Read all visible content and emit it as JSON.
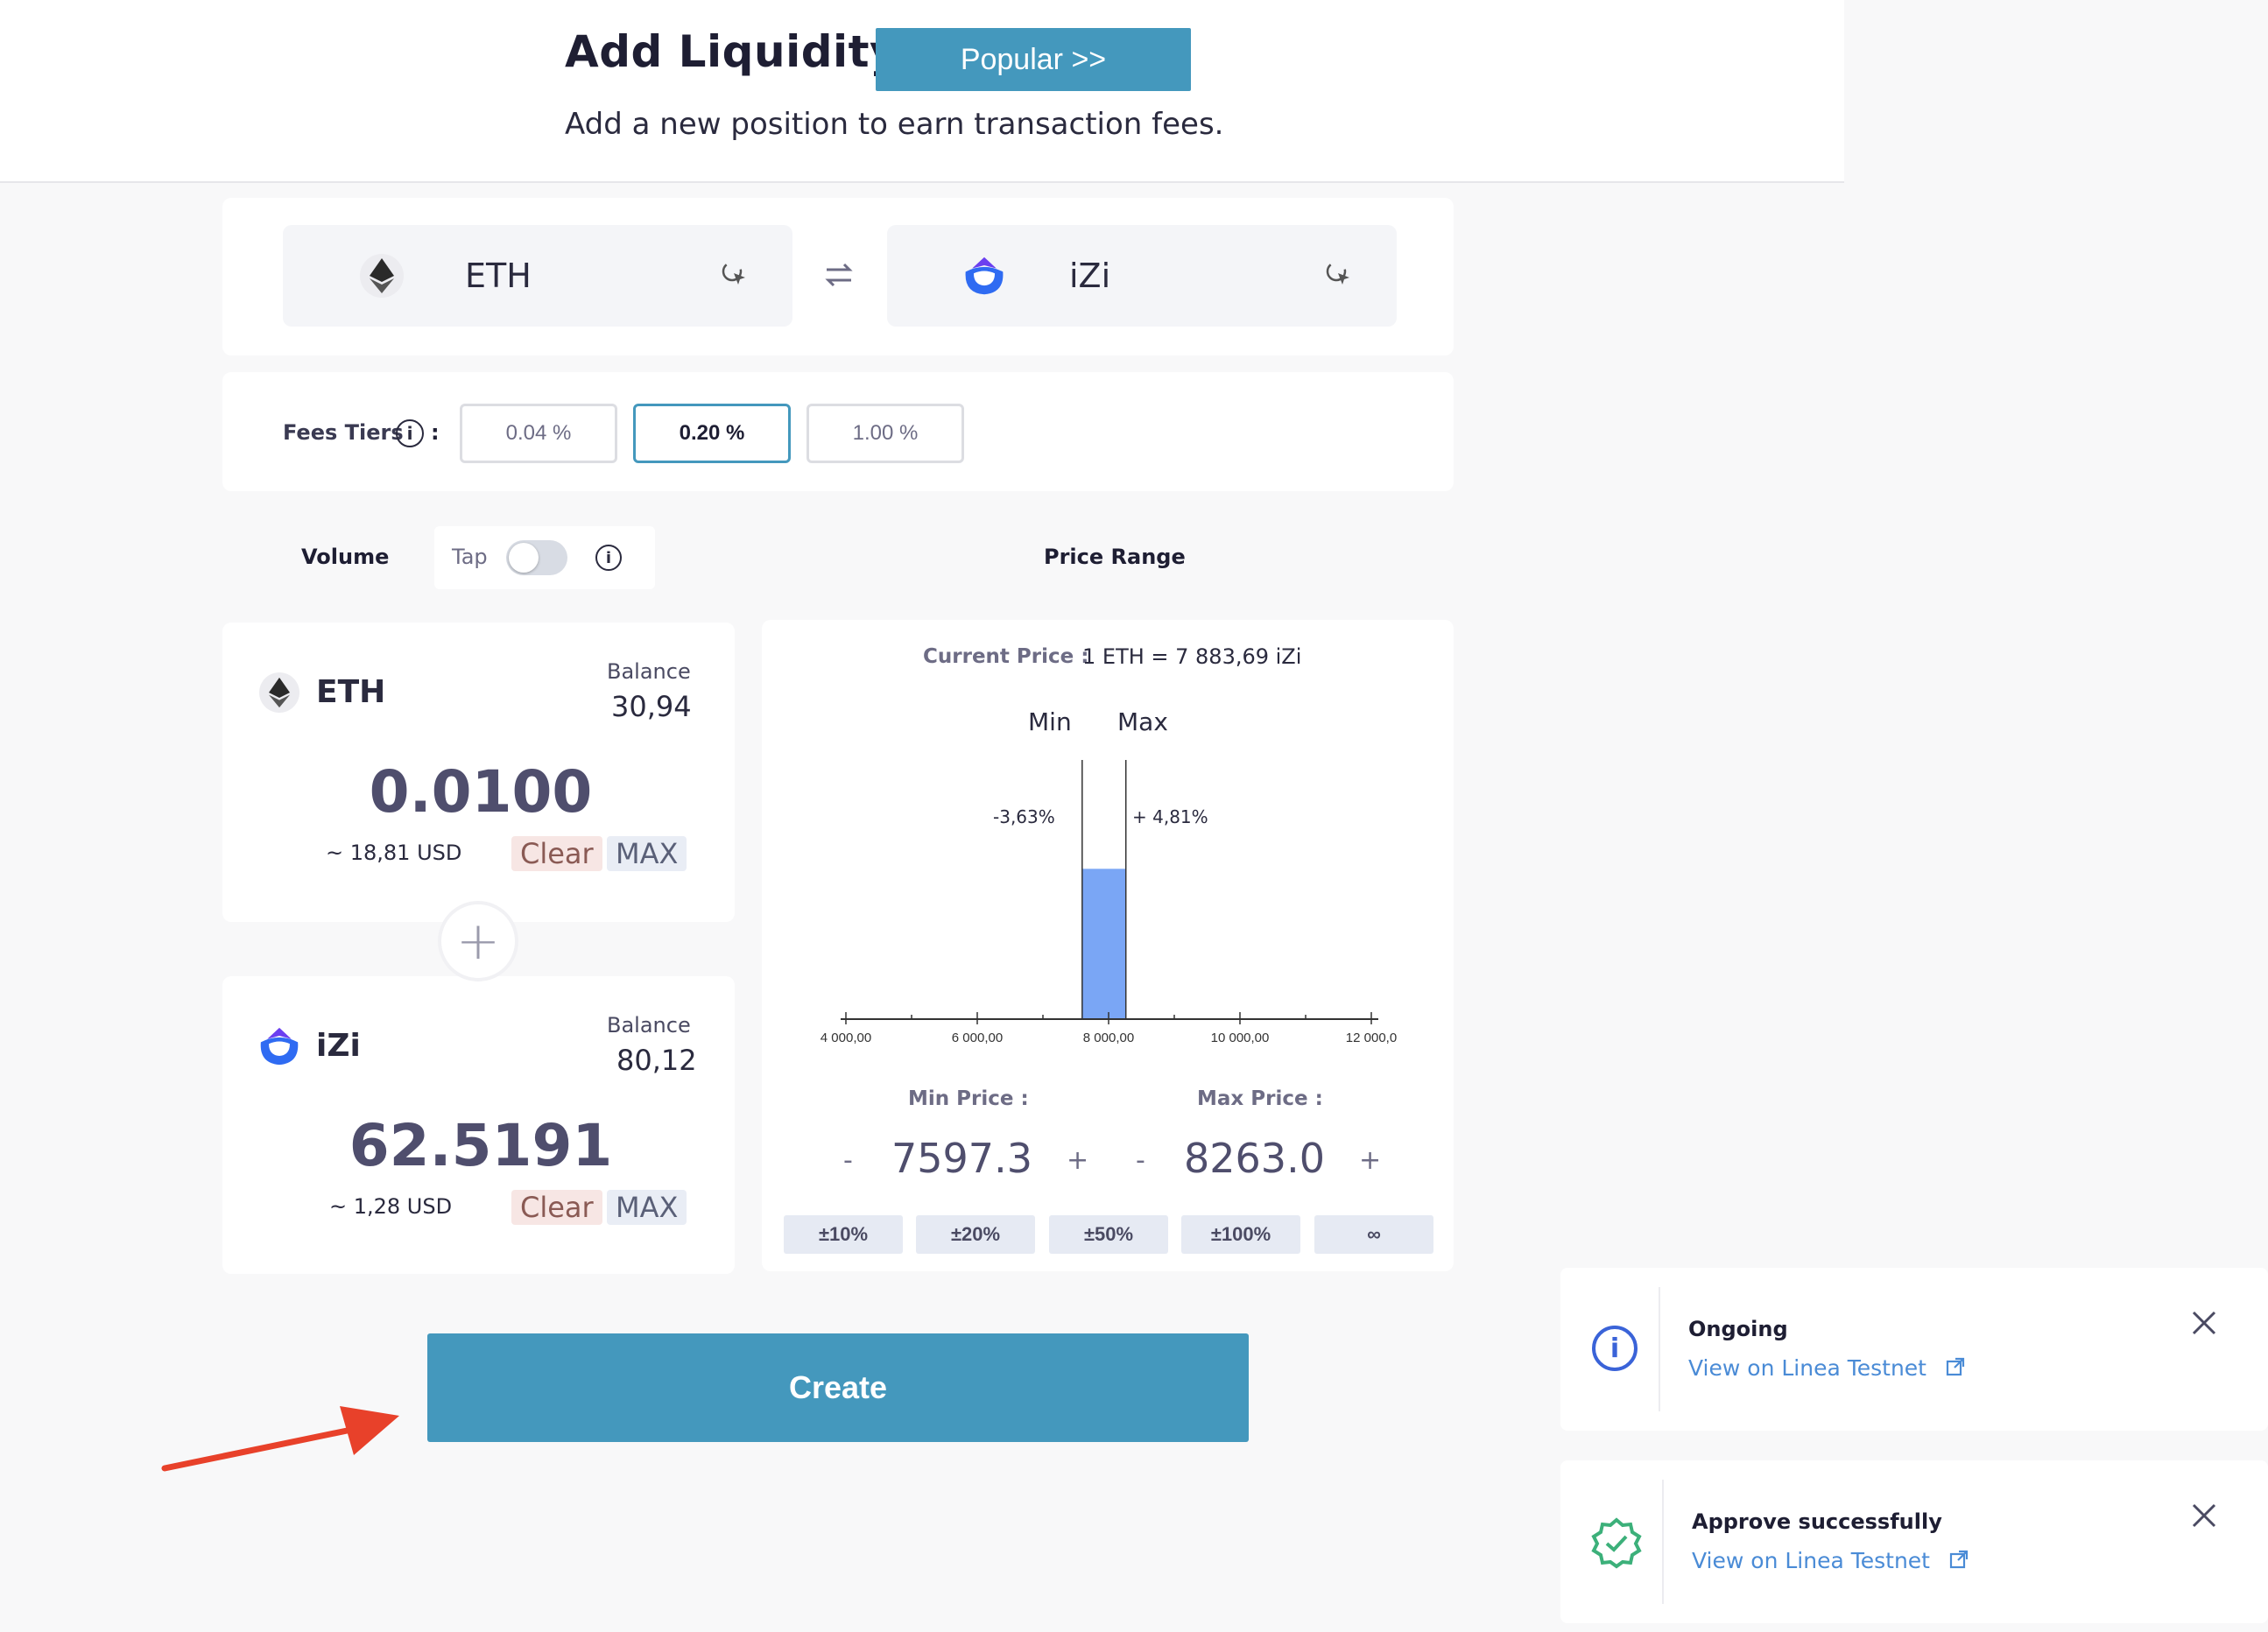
{
  "header": {
    "title": "Add Liquidity",
    "popular_label": "Popular >>",
    "subtitle": "Add a new position to earn transaction fees."
  },
  "pair": {
    "token_a": "ETH",
    "token_b": "iZi"
  },
  "fees": {
    "label": "Fees Tiers",
    "colon": ":",
    "options": [
      "0.04 %",
      "0.20 %",
      "1.00 %"
    ],
    "selected": "0.20 %"
  },
  "mode": {
    "volume_label": "Volume",
    "tap_label": "Tap",
    "price_range_label": "Price Range"
  },
  "deposit_a": {
    "token": "ETH",
    "balance_label": "Balance",
    "balance": "30,94",
    "amount": "0.0100",
    "usd": "~ 18,81 USD",
    "clear": "Clear",
    "max": "MAX"
  },
  "deposit_b": {
    "token": "iZi",
    "balance_label": "Balance",
    "balance": "80,12",
    "amount": "62.5191",
    "usd": "~ 1,28 USD",
    "clear": "Clear",
    "max": "MAX"
  },
  "plus": "+",
  "price_range": {
    "current_label": "Current Price :",
    "current_value": "1 ETH = 7 883,69 iZi",
    "min_label": "Min",
    "max_label": "Max",
    "min_pct": "-3,63%",
    "max_pct": "+ 4,81%",
    "min_price_label": "Min Price :",
    "max_price_label": "Max Price :",
    "min_price": "7597.3",
    "max_price": "8263.0",
    "minus": "-",
    "plus": "+",
    "presets": [
      "±10%",
      "±20%",
      "±50%",
      "±100%",
      "∞"
    ]
  },
  "chart_data": {
    "type": "bar",
    "x_ticks": [
      "4 000,00",
      "6 000,00",
      "8 000,00",
      "10 000,00",
      "12 000,0"
    ],
    "x_range": [
      4000,
      12000
    ],
    "min_price": 7597.3,
    "max_price": 8263.0,
    "liquidity_fill": 0.58,
    "colors": {
      "bar": "#7aa6f5",
      "line": "#333333"
    }
  },
  "create_label": "Create",
  "toasts": [
    {
      "title": "Ongoing",
      "link": "View on Linea Testnet",
      "icon": "info-icon",
      "color": "#3a63d8"
    },
    {
      "title": "Approve successfully",
      "link": "View on Linea Testnet",
      "icon": "check-badge-icon",
      "color": "#3cb07a"
    }
  ],
  "colors": {
    "accent": "#4498bd",
    "arrow": "#e8412a"
  }
}
